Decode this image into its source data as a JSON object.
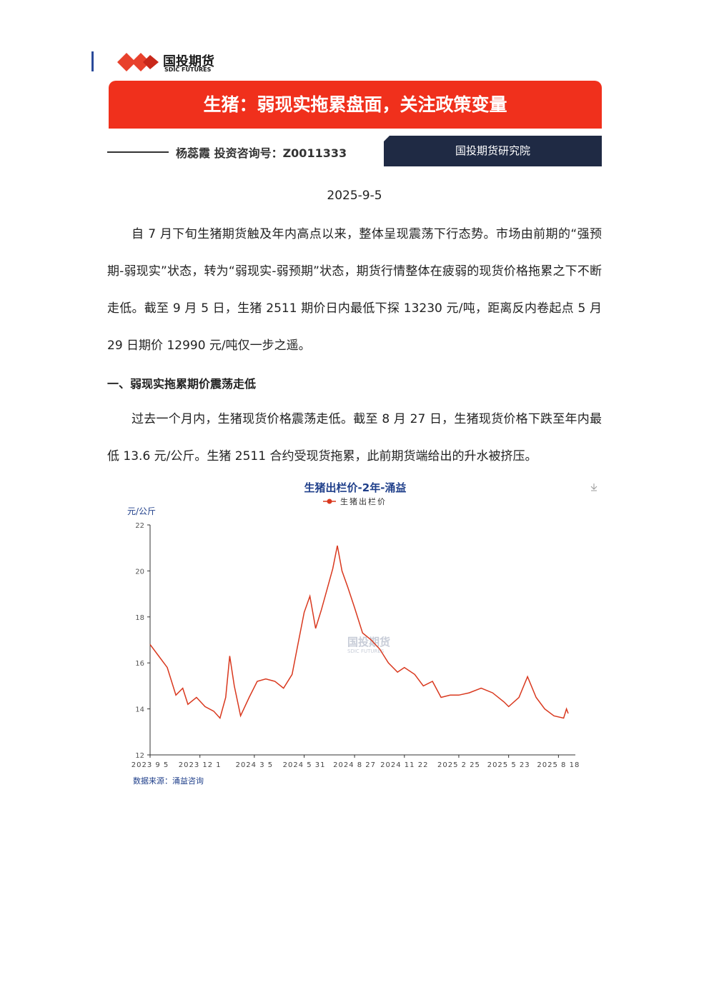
{
  "header": {
    "logo_cn": "国投期货",
    "logo_en": "SDIC FUTURES",
    "title": "生猪：弱现实拖累盘面，关注政策变量",
    "author": "杨蕊霞 投资咨询号：Z0011333",
    "institute": "国投期货研究院",
    "date": "2025-9-5"
  },
  "paragraphs": [
    "自 7 月下旬生猪期货触及年内高点以来，整体呈现震荡下行态势。市场由前期的“强预期-弱现实”状态，转为“弱现实-弱预期”状态，期货行情整体在疲弱的现货价格拖累之下不断走低。截至 9 月 5 日，生猪 2511 期价日内最低下探 13230 元/吨，距离反内卷起点 5 月 29 日期价 12990 元/吨仅一步之遥。"
  ],
  "section_heading": "一、弱现实拖累期价震荡走低",
  "section_paragraphs": [
    "过去一个月内，生猪现货价格震荡走低。截至 8 月 27 日，生猪现货价格下跌至年内最低 13.6 元/公斤。生猪 2511 合约受现货拖累，此前期货端给出的升水被挤压。"
  ],
  "chart_data": {
    "type": "line",
    "title": "生猪出栏价-2年-涌益",
    "y_label": "元/公斤",
    "source": "数据来源：涌益咨询",
    "watermark_cn": "国投期货",
    "watermark_en": "SDIC FUTURES",
    "x": [
      "2023-09-05",
      "2023-09-20",
      "2023-10-05",
      "2023-10-20",
      "2023-11-01",
      "2023-11-10",
      "2023-11-25",
      "2023-12-10",
      "2023-12-25",
      "2024-01-05",
      "2024-01-15",
      "2024-01-22",
      "2024-01-30",
      "2024-02-10",
      "2024-02-25",
      "2024-03-10",
      "2024-03-25",
      "2024-04-10",
      "2024-04-25",
      "2024-05-10",
      "2024-05-20",
      "2024-05-31",
      "2024-06-10",
      "2024-06-20",
      "2024-06-30",
      "2024-07-10",
      "2024-07-20",
      "2024-07-28",
      "2024-08-05",
      "2024-08-15",
      "2024-08-27",
      "2024-09-10",
      "2024-09-25",
      "2024-10-10",
      "2024-10-25",
      "2024-11-10",
      "2024-11-22",
      "2024-12-10",
      "2024-12-25",
      "2025-01-10",
      "2025-01-25",
      "2025-02-10",
      "2025-02-25",
      "2025-03-15",
      "2025-04-05",
      "2025-04-25",
      "2025-05-15",
      "2025-05-23",
      "2025-06-10",
      "2025-06-25",
      "2025-07-10",
      "2025-07-25",
      "2025-08-10",
      "2025-08-27",
      "2025-09-01",
      "2025-09-04"
    ],
    "series": [
      {
        "name": "生猪出栏价",
        "color": "#d9381e",
        "values": [
          16.8,
          16.3,
          15.8,
          14.6,
          14.9,
          14.2,
          14.5,
          14.1,
          13.9,
          13.6,
          14.5,
          16.3,
          15.0,
          13.7,
          14.5,
          15.2,
          15.3,
          15.2,
          14.9,
          15.5,
          16.8,
          18.2,
          18.9,
          17.5,
          18.3,
          19.2,
          20.1,
          21.1,
          20.0,
          19.3,
          18.4,
          17.3,
          17.0,
          16.6,
          16.0,
          15.6,
          15.8,
          15.5,
          15.0,
          15.2,
          14.5,
          14.6,
          14.6,
          14.7,
          14.9,
          14.7,
          14.3,
          14.1,
          14.5,
          15.4,
          14.5,
          14.0,
          13.7,
          13.6,
          14.0,
          13.8
        ]
      }
    ],
    "ylim": [
      12,
      22
    ],
    "yticks": [
      12,
      14,
      16,
      18,
      20,
      22
    ],
    "xticks": [
      {
        "value": "2023-09-05",
        "label": "2023 9 5"
      },
      {
        "value": "2023-12-01",
        "label": "2023 12 1"
      },
      {
        "value": "2024-03-05",
        "label": "2024 3 5"
      },
      {
        "value": "2024-05-31",
        "label": "2024 5 31"
      },
      {
        "value": "2024-08-27",
        "label": "2024 8 27"
      },
      {
        "value": "2024-11-22",
        "label": "2024 11 22"
      },
      {
        "value": "2025-02-25",
        "label": "2025 2 25"
      },
      {
        "value": "2025-05-23",
        "label": "2025 5 23"
      },
      {
        "value": "2025-08-18",
        "label": "2025 8 18"
      }
    ],
    "xlim": [
      "2023-09-05",
      "2025-09-04"
    ]
  }
}
